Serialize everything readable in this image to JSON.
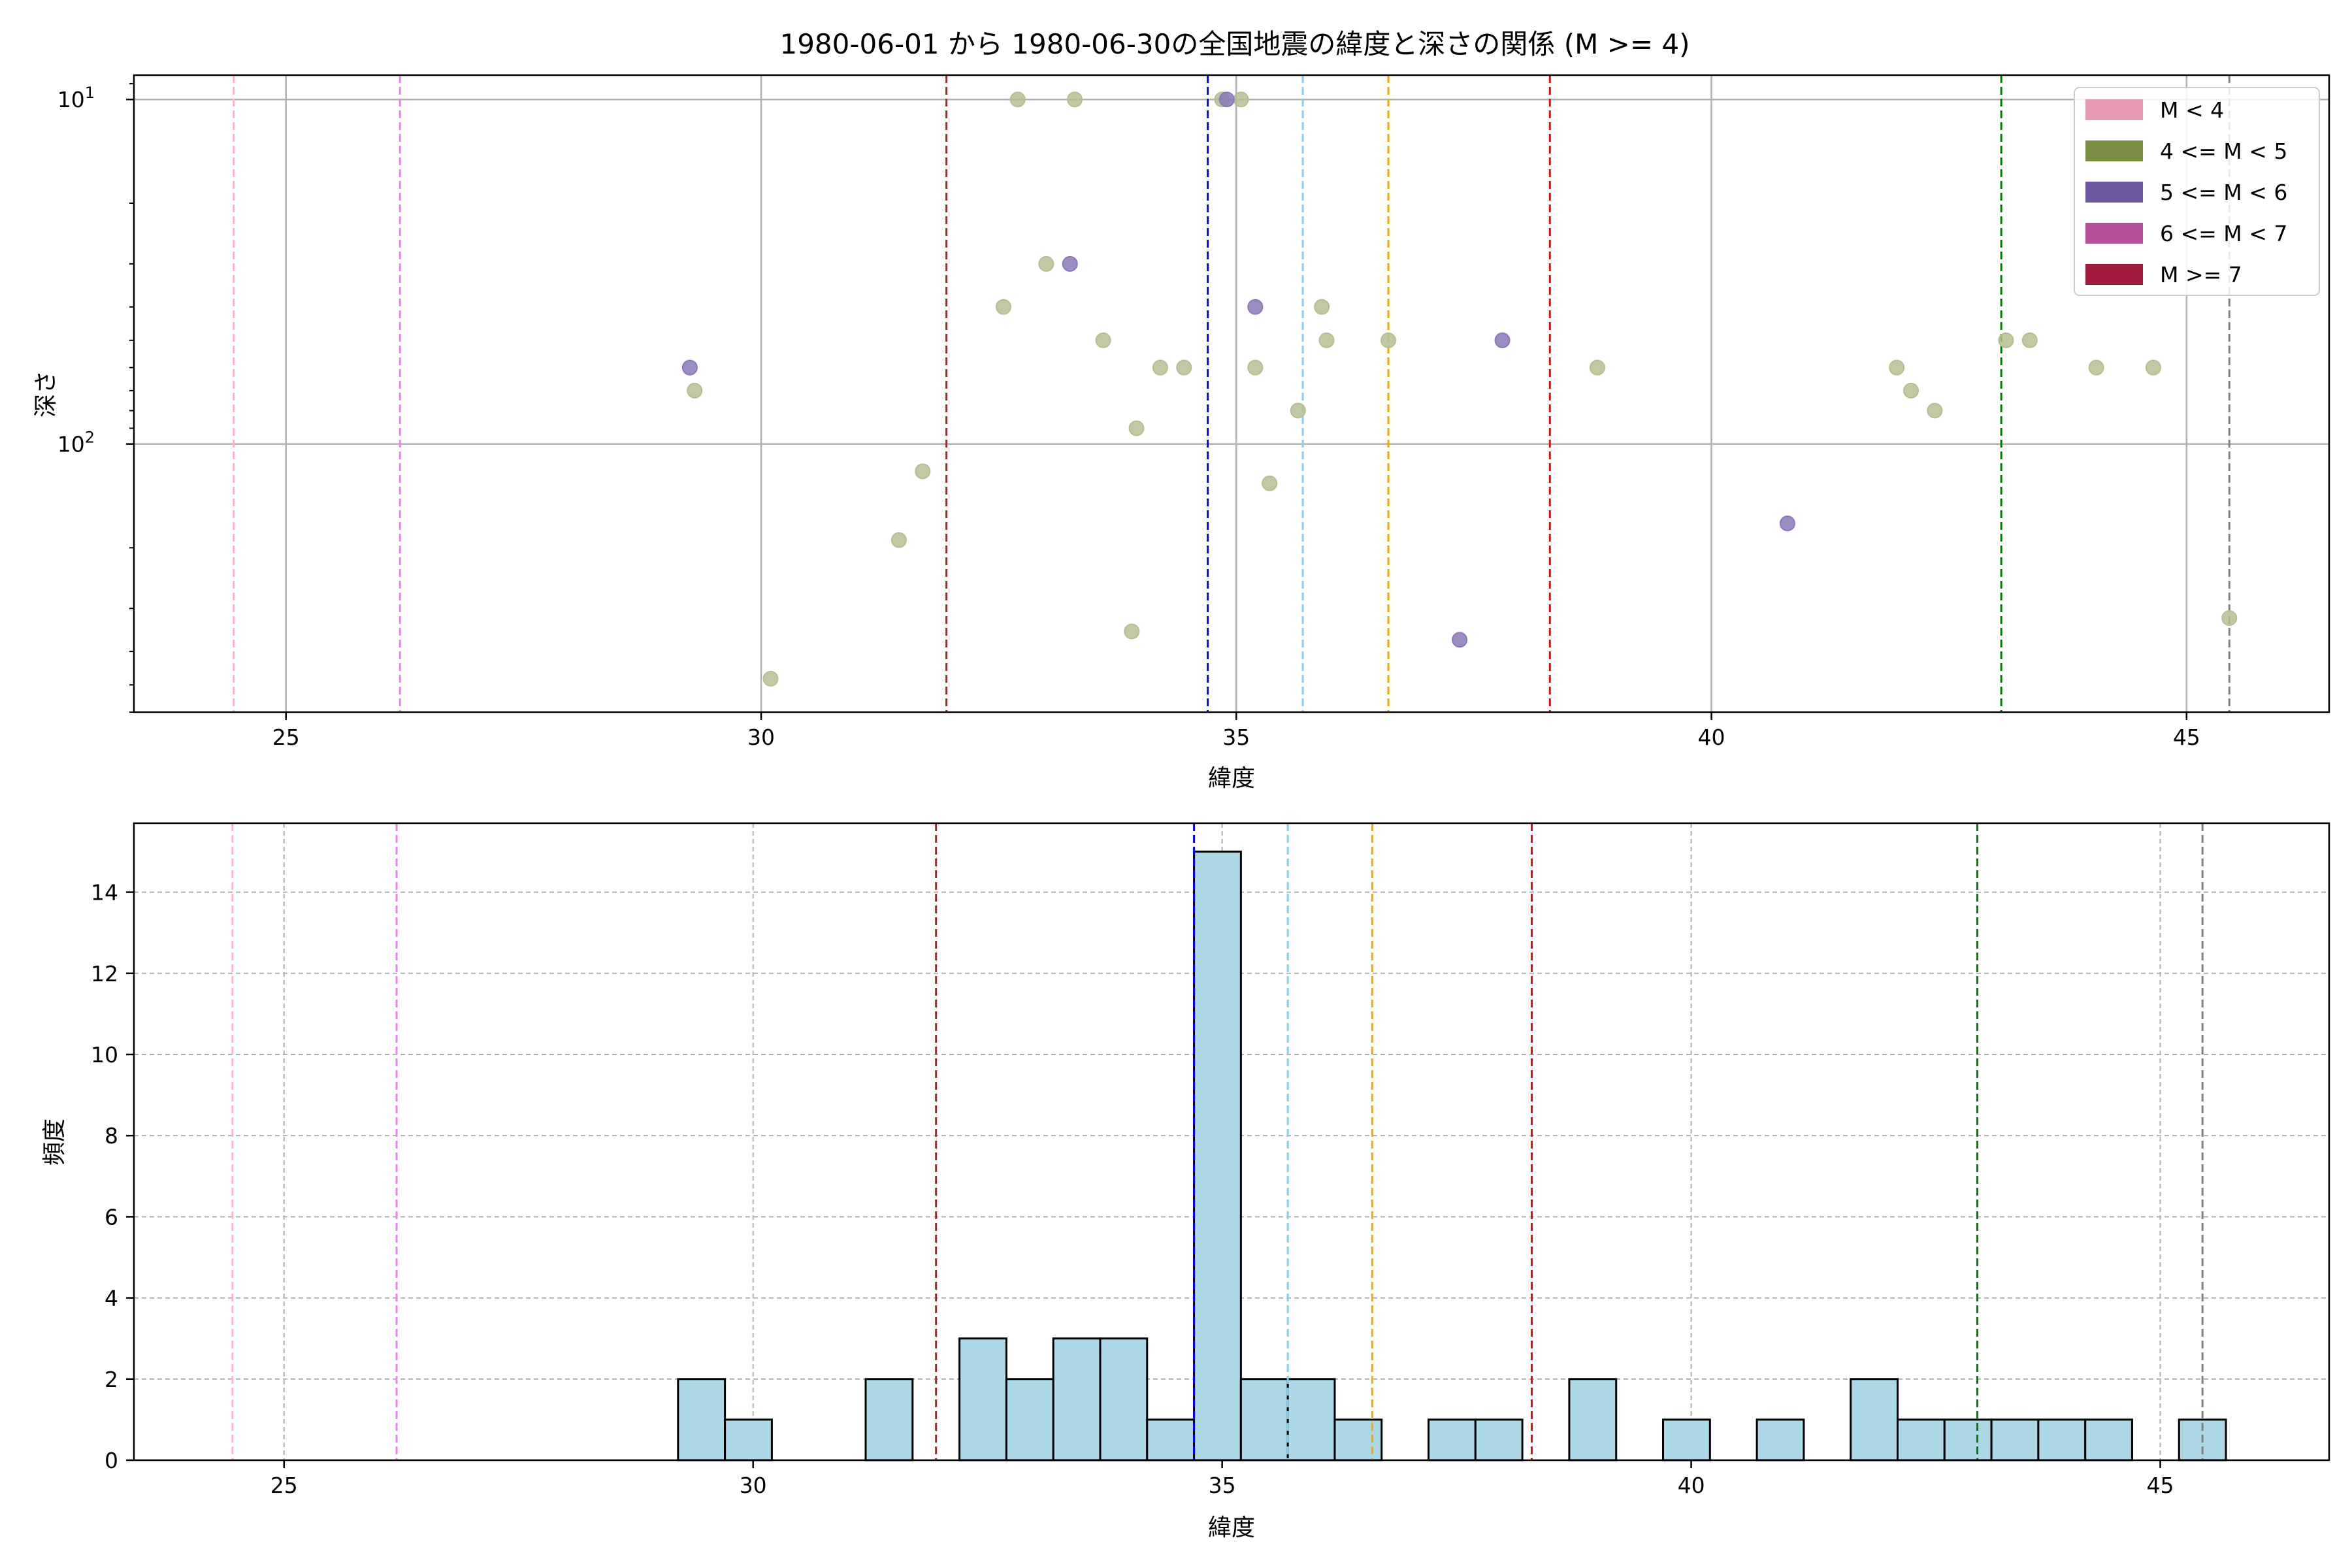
{
  "figure": {
    "title": "1980-06-01 から 1980-06-30の全国地震の緯度と深さの関係 (M >= 4)"
  },
  "reference_lines": [
    {
      "x": 24.45,
      "color": "#ffb6c1"
    },
    {
      "x": 26.2,
      "color": "#ee82ee"
    },
    {
      "x": 31.95,
      "color": "#b22222"
    },
    {
      "x": 34.7,
      "color": "#0000ff"
    },
    {
      "x": 35.7,
      "color": "#87ceeb"
    },
    {
      "x": 36.6,
      "color": "#ffa500"
    },
    {
      "x": 38.3,
      "color": "#ff0000"
    },
    {
      "x": 43.05,
      "color": "#008000"
    },
    {
      "x": 45.45,
      "color": "#808080"
    }
  ],
  "chart_data": [
    {
      "type": "scatter",
      "title": "1980-06-01 から 1980-06-30の全国地震の緯度と深さの関係 (M >= 4)",
      "xlabel": "緯度",
      "ylabel": "深さ",
      "xlim": [
        23.4,
        46.5
      ],
      "ylim": [
        600,
        8.5
      ],
      "y_scale": "log",
      "y_inverted": true,
      "grid": true,
      "x_ticks": [
        25,
        30,
        35,
        40,
        45
      ],
      "y_ticks": [
        {
          "value": 10,
          "label_base": "10",
          "label_exp": "1"
        },
        {
          "value": 100,
          "label_base": "10",
          "label_exp": "2"
        }
      ],
      "legend": {
        "placement": "top-right",
        "entries": [
          {
            "label": "M < 4",
            "color": "#e89ab4"
          },
          {
            "label": "4 <= M < 5",
            "color": "#7b8c45"
          },
          {
            "label": "5 <= M < 6",
            "color": "#6e58a2"
          },
          {
            "label": "6 <= M < 7",
            "color": "#b5509c"
          },
          {
            "label": "M >= 7",
            "color": "#a11c3e"
          }
        ]
      },
      "series": [
        {
          "name": "4 <= M < 5",
          "color": "#b5bf90",
          "points": [
            [
              29.3,
              70
            ],
            [
              30.1,
              480
            ],
            [
              31.45,
              190
            ],
            [
              31.7,
              120
            ],
            [
              32.55,
              40
            ],
            [
              32.7,
              10
            ],
            [
              33.0,
              30
            ],
            [
              33.3,
              10
            ],
            [
              33.6,
              50
            ],
            [
              33.9,
              350
            ],
            [
              33.95,
              90
            ],
            [
              34.2,
              60
            ],
            [
              34.45,
              60
            ],
            [
              34.85,
              10
            ],
            [
              35.05,
              10
            ],
            [
              35.2,
              60
            ],
            [
              35.35,
              130
            ],
            [
              35.65,
              80
            ],
            [
              35.9,
              40
            ],
            [
              35.95,
              50
            ],
            [
              36.6,
              50
            ],
            [
              38.8,
              60
            ],
            [
              41.95,
              60
            ],
            [
              42.1,
              70
            ],
            [
              42.35,
              80
            ],
            [
              43.1,
              50
            ],
            [
              43.35,
              50
            ],
            [
              44.05,
              60
            ],
            [
              44.65,
              60
            ],
            [
              45.45,
              320
            ]
          ]
        },
        {
          "name": "5 <= M < 6",
          "color": "#8a78b8",
          "points": [
            [
              29.25,
              60
            ],
            [
              33.25,
              30
            ],
            [
              34.9,
              10
            ],
            [
              35.2,
              40
            ],
            [
              37.35,
              370
            ],
            [
              37.8,
              50
            ],
            [
              40.8,
              170
            ]
          ]
        }
      ]
    },
    {
      "type": "bar",
      "subtype": "histogram",
      "xlabel": "緯度",
      "ylabel": "頻度",
      "xlim": [
        23.4,
        46.8
      ],
      "ylim": [
        0,
        15.7
      ],
      "grid": true,
      "x_ticks": [
        25,
        30,
        35,
        40,
        45
      ],
      "y_ticks": [
        0,
        2,
        4,
        6,
        8,
        10,
        12,
        14
      ],
      "bin_edges": [
        29.2,
        29.7,
        30.2,
        30.7,
        31.2,
        31.7,
        32.2,
        32.7,
        33.2,
        33.7,
        34.2,
        34.7,
        35.2,
        35.7,
        36.2,
        36.7,
        37.2,
        37.7,
        38.2,
        38.7,
        39.2,
        39.7,
        40.2,
        40.7,
        41.2,
        41.7,
        42.2,
        42.7,
        43.2,
        43.7,
        44.2,
        44.7,
        45.2,
        45.7
      ],
      "values": [
        2,
        1,
        0,
        0,
        2,
        0,
        3,
        2,
        3,
        3,
        1,
        15,
        2,
        2,
        1,
        0,
        1,
        1,
        0,
        2,
        0,
        1,
        0,
        1,
        0,
        2,
        1,
        1,
        1,
        1,
        1,
        0,
        1
      ],
      "bar_color": "#add8e6",
      "edge_color": "#000000"
    }
  ]
}
